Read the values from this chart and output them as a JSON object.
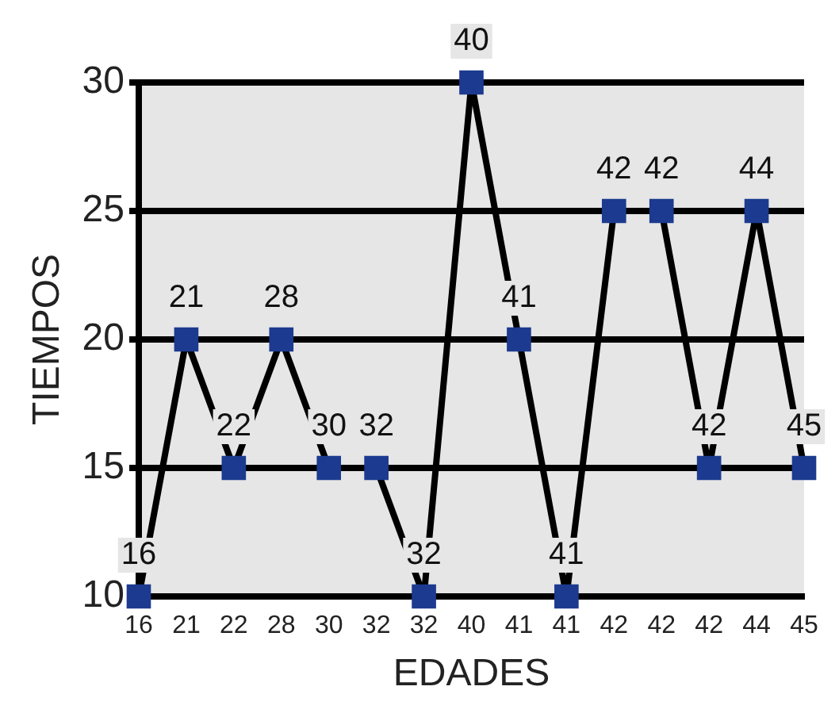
{
  "chart_data": {
    "type": "line",
    "xlabel": "EDADES",
    "ylabel": "TIEMPOS",
    "categories": [
      "16",
      "21",
      "22",
      "28",
      "30",
      "32",
      "32",
      "40",
      "41",
      "41",
      "42",
      "42",
      "42",
      "44",
      "45"
    ],
    "series": [
      {
        "color": "#1c3a8f",
        "values": [
          10,
          20,
          15,
          20,
          15,
          15,
          10,
          30,
          20,
          10,
          25,
          25,
          15,
          25,
          15
        ]
      }
    ],
    "annotations": [
      "16",
      "21",
      "22",
      "28",
      "30",
      "32",
      "32",
      "40",
      "41",
      "41",
      "42",
      "42",
      "42",
      "44",
      "45"
    ],
    "ylim": [
      10,
      30
    ],
    "yticks": [
      10,
      15,
      20,
      25,
      30
    ],
    "grid": "y",
    "legend": false,
    "marker": "square",
    "line_style": "solid"
  }
}
